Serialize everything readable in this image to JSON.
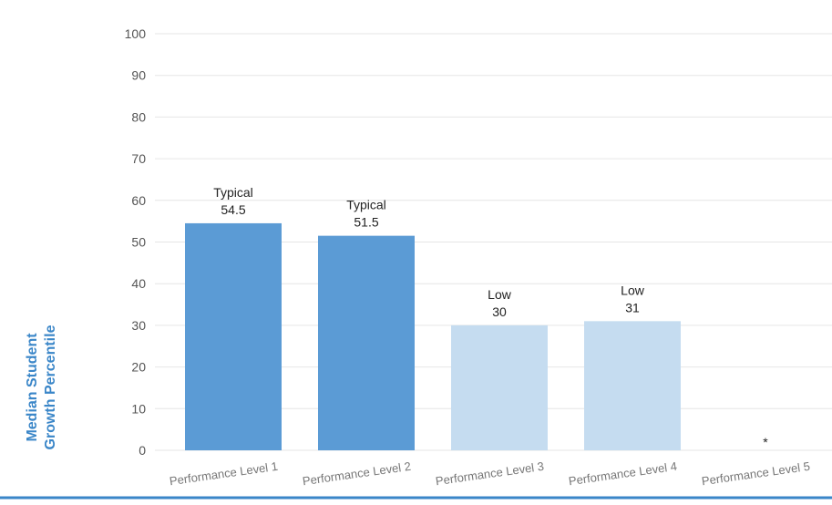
{
  "chart_data": {
    "type": "bar",
    "title": "",
    "xlabel": "",
    "ylabel_lines": [
      "Median Student",
      "Growth Percentile"
    ],
    "ylim": [
      0,
      100
    ],
    "yticks": [
      0,
      10,
      20,
      30,
      40,
      50,
      60,
      70,
      80,
      90,
      100
    ],
    "grid": true,
    "categories": [
      "Performance Level 1",
      "Performance Level 2",
      "Performance Level 3",
      "Performance Level 4",
      "Performance Level 5"
    ],
    "values": [
      54.5,
      51.5,
      30,
      31,
      null
    ],
    "growth_labels": [
      "Typical",
      "Typical",
      "Low",
      "Low",
      ""
    ],
    "value_labels": [
      "54.5",
      "51.5",
      "30",
      "31",
      "*"
    ],
    "bar_colors": [
      "#5b9bd5",
      "#5b9bd5",
      "#c5dcf0",
      "#c5dcf0",
      "#c5dcf0"
    ],
    "accent_color": "#3a86c8"
  }
}
